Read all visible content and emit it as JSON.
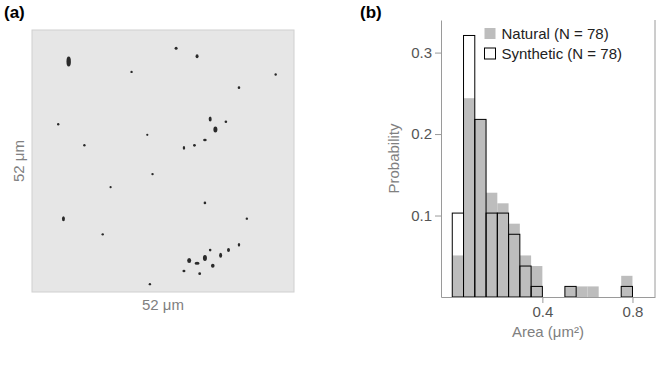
{
  "image_panel": {
    "panel_label": "(a)",
    "x_label": "52 μm",
    "y_label": "52 μm"
  },
  "chart_data": {
    "type": "histogram",
    "panel_label": "(b)",
    "x_label": "Area (μm²)",
    "y_label": "Probability",
    "bins": [
      0,
      0.05,
      0.1,
      0.15,
      0.2,
      0.25,
      0.3,
      0.35,
      0.4,
      0.45,
      0.5,
      0.55,
      0.6,
      0.65,
      0.7,
      0.75,
      0.8,
      0.85
    ],
    "series": [
      {
        "name": "Natural (N = 78)",
        "color": "#bdbdbd",
        "values": [
          0.051,
          0.244,
          0.218,
          0.128,
          0.115,
          0.09,
          0.051,
          0.038,
          0,
          0,
          0.013,
          0.013,
          0.013,
          0,
          0,
          0.026,
          0
        ]
      },
      {
        "name": "Synthetic (N = 78)",
        "color": "#000000",
        "values": [
          0.103,
          0.321,
          0.218,
          0.103,
          0.103,
          0.077,
          0.038,
          0.013,
          0,
          0,
          0.013,
          0,
          0,
          0,
          0,
          0.013,
          0
        ]
      }
    ],
    "xlim": [
      -0.05,
      0.9
    ],
    "ylim": [
      0,
      0.34
    ],
    "xticks": [
      0.4,
      0.8
    ],
    "yticks": [
      0.1,
      0.2,
      0.3
    ],
    "legend": "upper right"
  }
}
